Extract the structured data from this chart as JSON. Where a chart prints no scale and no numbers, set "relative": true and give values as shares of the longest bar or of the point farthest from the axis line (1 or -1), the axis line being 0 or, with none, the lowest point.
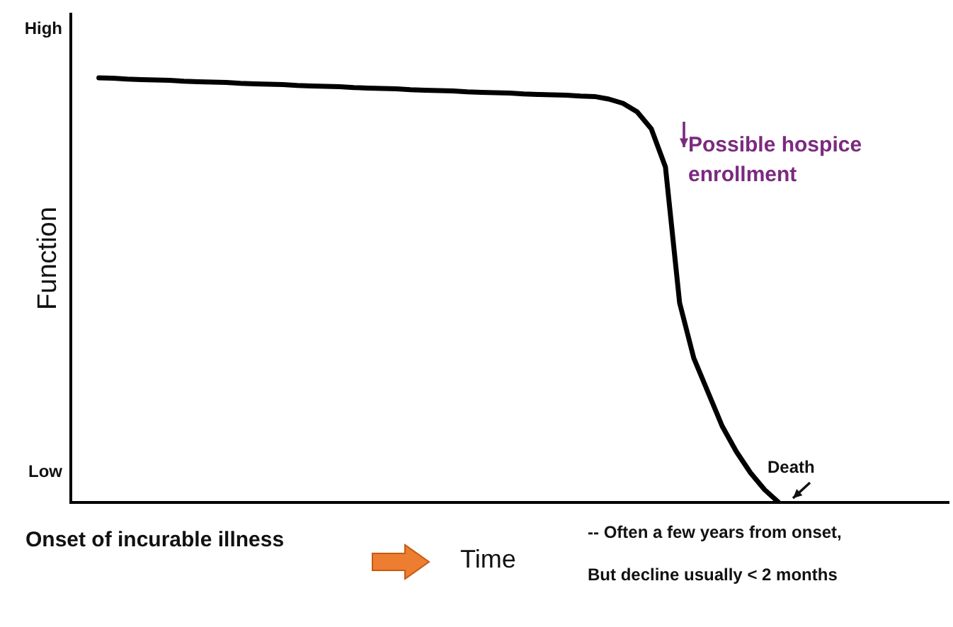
{
  "chart_data": {
    "type": "line",
    "relative": true,
    "ylabel": "Function",
    "xlabel": "Time",
    "categories": [
      null,
      null,
      null,
      null,
      null,
      null,
      null,
      null,
      null,
      null,
      null,
      null,
      null,
      null,
      null,
      null,
      null,
      null,
      null,
      null,
      null,
      null,
      null,
      null,
      null,
      null,
      null,
      null,
      null,
      null,
      null,
      null,
      null,
      null,
      null,
      null,
      null,
      null,
      null,
      null,
      null,
      null,
      null,
      null,
      null,
      null,
      null,
      null,
      null,
      null,
      null,
      null,
      null,
      null,
      null,
      null,
      null,
      null,
      null,
      null,
      null,
      null,
      null
    ],
    "series": [
      {
        "color": "#000000",
        "values": [
          null,
          null,
          1,
          0.999,
          0.997,
          0.996,
          0.995,
          0.994,
          0.992,
          0.991,
          0.99,
          0.989,
          0.987,
          0.986,
          0.985,
          0.984,
          0.982,
          0.981,
          0.98,
          0.979,
          0.977,
          0.976,
          0.975,
          0.974,
          0.972,
          0.971,
          0.97,
          0.969,
          0.967,
          0.966,
          0.965,
          0.964,
          0.962,
          0.961,
          0.96,
          0.959,
          0.957,
          0.956,
          0.95,
          0.94,
          0.92,
          0.88,
          0.79,
          0.47,
          0.34,
          0.26,
          0.18,
          0.12,
          0.07,
          0.03,
          0,
          null,
          null,
          null,
          null,
          null,
          null,
          null,
          null,
          null,
          null,
          null,
          null
        ]
      }
    ],
    "grid": false,
    "annotations": [
      "High",
      "Low",
      "Possible hospice enrollment",
      "Death",
      "Onset of incurable illness",
      "-- Often a few years from onset,",
      "But decline usually < 2 months"
    ]
  }
}
